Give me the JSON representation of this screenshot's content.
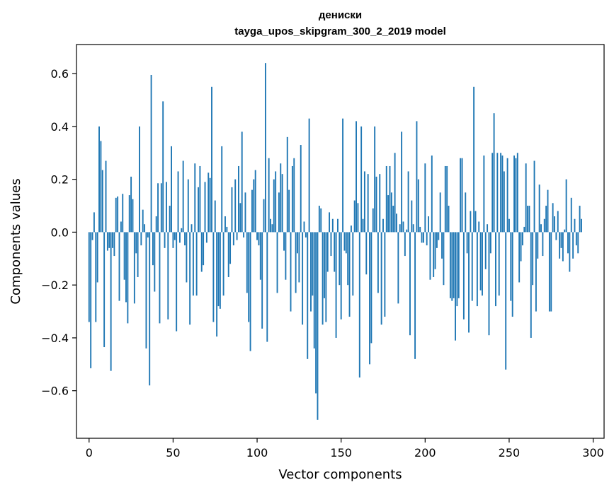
{
  "chart_data": {
    "type": "bar",
    "title": [
      "дениски",
      "tayga_upos_skipgram_300_2_2019 model"
    ],
    "xlabel": "Vector components",
    "ylabel": "Components values",
    "xlim": [
      -7.5,
      306.5
    ],
    "ylim": [
      -0.78,
      0.71
    ],
    "xticks": [
      0,
      50,
      100,
      150,
      200,
      250,
      300
    ],
    "yticks": [
      -0.6,
      -0.4,
      -0.2,
      0.0,
      0.2,
      0.4,
      0.6
    ],
    "ytick_labels": [
      "−0.6",
      "−0.4",
      "−0.2",
      "0.0",
      "0.2",
      "0.4",
      "0.6"
    ],
    "grid": false,
    "bar_color": "#1f77b4",
    "x_start": 0,
    "values": [
      -0.34,
      -0.515,
      -0.03,
      0.075,
      -0.34,
      -0.19,
      0.4,
      0.345,
      0.235,
      -0.435,
      0.27,
      -0.07,
      -0.06,
      -0.525,
      -0.06,
      -0.09,
      0.13,
      0.135,
      -0.26,
      0.04,
      0.145,
      -0.18,
      -0.265,
      -0.345,
      0.14,
      0.21,
      0.125,
      -0.27,
      -0.08,
      -0.17,
      0.4,
      -0.05,
      0.085,
      0.03,
      -0.44,
      -0.02,
      -0.58,
      0.595,
      -0.125,
      -0.225,
      0.06,
      0.185,
      -0.345,
      0.185,
      0.495,
      -0.06,
      0.19,
      -0.33,
      0.1,
      0.325,
      -0.06,
      -0.03,
      -0.375,
      0.23,
      -0.04,
      0.015,
      0.27,
      -0.05,
      -0.19,
      0.2,
      -0.35,
      0.03,
      -0.24,
      0.26,
      -0.24,
      0.17,
      0.25,
      -0.15,
      -0.125,
      0.19,
      -0.04,
      0.225,
      0.205,
      0.55,
      -0.34,
      0.12,
      -0.395,
      -0.28,
      -0.29,
      0.325,
      -0.24,
      0.06,
      0.02,
      -0.17,
      -0.12,
      0.17,
      -0.05,
      0.2,
      -0.03,
      0.25,
      0.11,
      0.38,
      -0.02,
      0.15,
      -0.23,
      -0.34,
      -0.45,
      0.16,
      0.2,
      0.235,
      -0.03,
      -0.05,
      -0.18,
      -0.365,
      0.125,
      0.64,
      -0.415,
      0.28,
      0.05,
      0.03,
      0.2,
      0.23,
      -0.23,
      0.15,
      0.26,
      0.22,
      -0.07,
      -0.18,
      0.36,
      0.16,
      -0.3,
      0.25,
      0.28,
      -0.23,
      -0.08,
      -0.19,
      0.33,
      -0.35,
      0.04,
      -0.02,
      -0.48,
      0.43,
      -0.3,
      -0.24,
      -0.44,
      -0.61,
      -0.71,
      0.1,
      0.09,
      -0.35,
      -0.25,
      -0.34,
      -0.15,
      0.075,
      -0.09,
      0.05,
      -0.15,
      -0.4,
      0.05,
      -0.2,
      -0.33,
      0.43,
      -0.07,
      -0.08,
      -0.2,
      -0.32,
      0.025,
      -0.24,
      0.12,
      0.42,
      0.11,
      -0.55,
      0.4,
      0.05,
      0.23,
      -0.16,
      0.22,
      -0.5,
      -0.42,
      0.09,
      0.4,
      0.21,
      -0.23,
      0.22,
      -0.35,
      0.05,
      -0.32,
      0.25,
      0.14,
      0.25,
      0.15,
      0.1,
      0.3,
      0.07,
      -0.27,
      0.03,
      0.38,
      0.04,
      -0.09,
      0.01,
      0.23,
      -0.39,
      0.12,
      0.03,
      -0.48,
      0.42,
      0.2,
      0.02,
      -0.04,
      -0.04,
      0.26,
      -0.05,
      0.06,
      -0.18,
      0.29,
      -0.17,
      -0.14,
      -0.06,
      -0.03,
      0.15,
      -0.1,
      -0.2,
      0.25,
      0.25,
      0.1,
      -0.25,
      -0.26,
      -0.25,
      -0.41,
      -0.28,
      -0.25,
      0.28,
      0.28,
      -0.33,
      0.15,
      -0.08,
      -0.38,
      0.08,
      -0.26,
      0.55,
      0.08,
      -0.28,
      0.04,
      -0.22,
      -0.24,
      0.29,
      -0.14,
      0.03,
      -0.39,
      -0.08,
      0.3,
      0.45,
      -0.28,
      0.3,
      -0.24,
      0.3,
      0.29,
      0.23,
      -0.52,
      0.28,
      0.05,
      -0.26,
      -0.32,
      0.29,
      0.28,
      0.3,
      -0.19,
      -0.11,
      -0.05,
      0.02,
      0.26,
      0.1,
      0.1,
      -0.4,
      -0.2,
      0.27,
      -0.3,
      -0.1,
      0.18,
      0.03,
      -0.09,
      0.05,
      0.1,
      0.16,
      -0.3,
      -0.3,
      0.11,
      0.06,
      -0.03,
      0.08,
      -0.1,
      -0.06,
      -0.11,
      0.01,
      0.2,
      -0.08,
      -0.15,
      0.13,
      -0.1,
      0.05,
      -0.05,
      -0.08,
      0.1,
      0.05
    ]
  }
}
